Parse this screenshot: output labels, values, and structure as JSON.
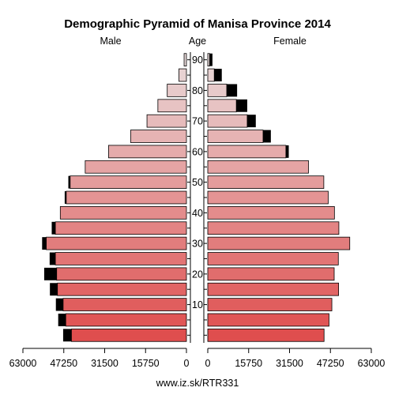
{
  "chart_data": {
    "type": "bar",
    "title": "Demographic Pyramid of Manisa Province 2014",
    "male_label": "Male",
    "age_label": "Age",
    "female_label": "Female",
    "source": "www.iz.sk/RTR331",
    "x_ticks_left": [
      "63000",
      "47250",
      "31500",
      "15750",
      "0"
    ],
    "x_ticks_right": [
      "0",
      "15750",
      "31500",
      "47250",
      "63000"
    ],
    "xlim": [
      0,
      63000
    ],
    "age_ticks": [
      "10",
      "20",
      "30",
      "40",
      "50",
      "60",
      "70",
      "80",
      "90"
    ],
    "age_groups": [
      "0-4",
      "5-9",
      "10-14",
      "15-19",
      "20-24",
      "25-29",
      "30-34",
      "35-39",
      "40-44",
      "45-49",
      "50-54",
      "55-59",
      "60-64",
      "65-69",
      "70-74",
      "75-79",
      "80-84",
      "85-89",
      "90+"
    ],
    "series": [
      {
        "name": "Male",
        "values": [
          44300,
          46500,
          47500,
          49700,
          50000,
          50500,
          54000,
          50500,
          48600,
          46300,
          44800,
          39000,
          30000,
          21500,
          15200,
          11000,
          7400,
          2900,
          900
        ],
        "excess": [
          3200,
          2900,
          2800,
          2900,
          4800,
          2200,
          1600,
          1400,
          0,
          600,
          700,
          0,
          0,
          0,
          0,
          0,
          0,
          0,
          0
        ]
      },
      {
        "name": "Female",
        "values": [
          44800,
          46700,
          47800,
          50400,
          48700,
          50300,
          54700,
          50500,
          48800,
          46400,
          44700,
          38800,
          30100,
          21300,
          15200,
          11000,
          7300,
          2500,
          700
        ],
        "excess": [
          0,
          0,
          0,
          0,
          0,
          0,
          0,
          0,
          0,
          0,
          0,
          0,
          1100,
          3000,
          3300,
          4200,
          4000,
          2900,
          1100
        ]
      }
    ],
    "colors": {
      "bar_young": "#df4e4e",
      "bar_old": "#e8dada",
      "excess": "#000000",
      "outline": "#000000"
    }
  }
}
